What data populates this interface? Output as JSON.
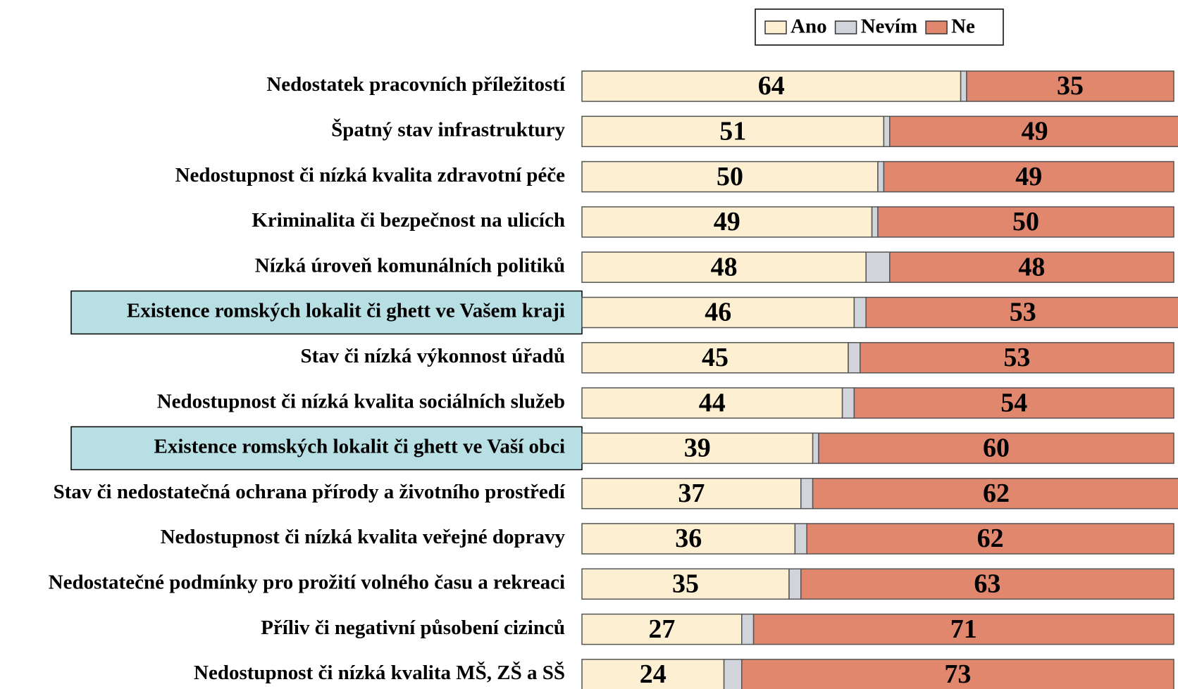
{
  "chart_data": {
    "type": "stacked_bar_horizontal",
    "categories": [
      "Nedostatek pracovních příležitostí",
      "Špatný stav infrastruktury",
      "Nedostupnost či nízká kvalita zdravotní péče",
      "Kriminalita či bezpečnost na ulicích",
      "Nízká úroveň komunálních politiků",
      "Existence romských lokalit či ghett ve Vašem kraji",
      "Stav či nízká výkonnost úřadů",
      "Nedostupnost či nízká kvalita sociálních služeb",
      "Existence romských lokalit či ghett ve Vaší obci",
      "Stav či nedostatečná ochrana přírody a životního prostředí",
      "Nedostupnost či nízká kvalita veřejné dopravy",
      "Nedostatečné podmínky pro prožití volného času a rekreaci",
      "Příliv či negativní působení cizinců",
      "Nedostupnost či nízká kvalita MŠ, ZŠ a SŠ"
    ],
    "series": [
      {
        "name": "Ano",
        "color": "#fdf0d2",
        "values": [
          64,
          51,
          50,
          49,
          48,
          46,
          45,
          44,
          39,
          37,
          36,
          35,
          27,
          24
        ],
        "labeled": true
      },
      {
        "name": "Nevím",
        "color": "#d1d4da",
        "values": [
          1,
          1,
          1,
          1,
          4,
          2,
          2,
          2,
          1,
          2,
          2,
          2,
          2,
          3
        ],
        "labeled": false
      },
      {
        "name": "Ne",
        "color": "#e0876e",
        "values": [
          35,
          49,
          49,
          50,
          48,
          53,
          53,
          54,
          60,
          62,
          62,
          63,
          71,
          73
        ],
        "labeled": true
      }
    ],
    "xlim": [
      0,
      100
    ],
    "highlighted_categories": [
      5,
      8
    ],
    "highlight_color": "#b8dfe3"
  }
}
